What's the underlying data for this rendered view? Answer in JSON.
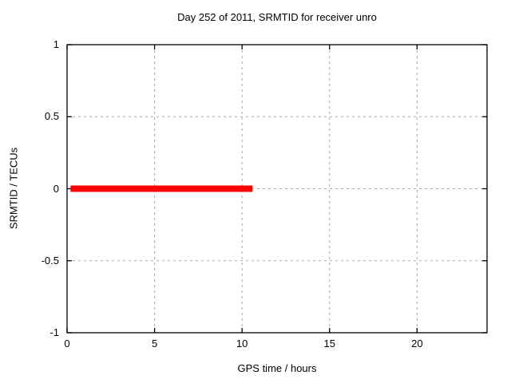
{
  "chart_data": {
    "type": "line",
    "title": "Day 252 of 2011, SRMTID for receiver unro",
    "xlabel": "GPS time / hours",
    "ylabel": "SRMTID / TECUs",
    "xlim": [
      0,
      24
    ],
    "ylim": [
      -1,
      1
    ],
    "x_ticks": [
      0,
      5,
      10,
      15,
      20
    ],
    "x_tick_labels": [
      "0",
      "5",
      "10",
      "15",
      "20"
    ],
    "y_ticks": [
      -1,
      -0.5,
      0,
      0.5,
      1
    ],
    "y_tick_labels": [
      "-1",
      "-0.5",
      "0",
      "0.5",
      "1"
    ],
    "grid": true,
    "grid_x_values": [
      5,
      10,
      15,
      20
    ],
    "grid_y_values": [
      -0.5,
      0,
      0.5
    ],
    "legend_position": "none",
    "series": [
      {
        "name": "SRMTID",
        "color": "#ff0000",
        "linewidth": 8,
        "points": [
          [
            0.2,
            0
          ],
          [
            10.6,
            0
          ]
        ]
      }
    ],
    "colors": {
      "border": "#000000",
      "grid": "#a8a8a8",
      "background": "#ffffff",
      "text": "#000000"
    }
  }
}
